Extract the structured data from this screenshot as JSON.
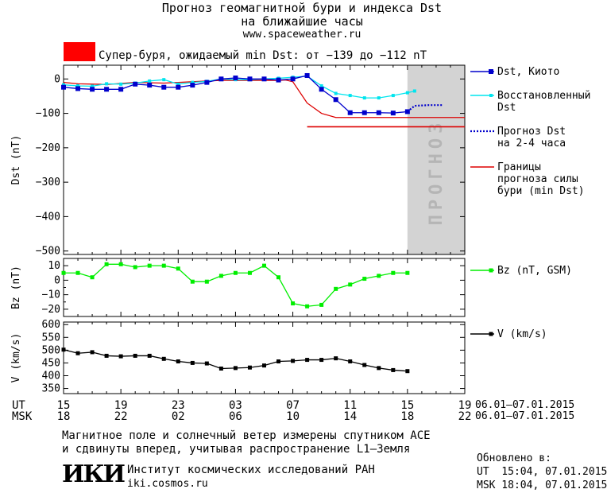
{
  "header": {
    "title_line1": "Прогноз геомагнитной бури и индекса Dst",
    "title_line2": "на ближайшие часы",
    "url": "www.spaceweather.ru",
    "alert_color": "#ff0000",
    "alert_text": "Супер-буря, ожидаемый min Dst: от −139 до −112 nT"
  },
  "forecast_label": "ПРОГНОЗ",
  "axes": {
    "ut_label": "UT",
    "msk_label": "MSK",
    "ut_ticks": [
      "15",
      "19",
      "23",
      "03",
      "07",
      "11",
      "15",
      "19"
    ],
    "msk_ticks": [
      "18",
      "22",
      "02",
      "06",
      "10",
      "14",
      "18",
      "22"
    ],
    "ut_range": "06.01–07.01.2015",
    "msk_range": "06.01–07.01.2015"
  },
  "footer": {
    "note_line1": "Магнитное поле и солнечный ветер измерены спутником ACE",
    "note_line2": "и сдвинуты вперед, учитывая распространение L1–Земля",
    "logo_text": "ИКИ",
    "institute": "Институт космических исследований РАН",
    "institute_url": "iki.cosmos.ru",
    "updated_label": "Обновлено в:",
    "updated_ut": "UT  15:04, 07.01.2015",
    "updated_msk": "MSK 18:04, 07.01.2015"
  },
  "colors": {
    "dst_kyoto": "#0000cc",
    "dst_restored": "#00e5ee",
    "dst_forecast": "#0000cc",
    "bounds": "#dd0000",
    "bz": "#00ee00",
    "v": "#000000",
    "forecast_band": "#d3d3d3"
  },
  "chart_data": [
    {
      "type": "line",
      "name": "dst",
      "xlabel": "",
      "ylabel": "Dst (nT)",
      "x_range": [
        15,
        43
      ],
      "ylim": [
        -510,
        40
      ],
      "y_ticks": [
        0,
        -100,
        -200,
        -300,
        -400,
        -500
      ],
      "forecast_band_x": [
        39,
        43
      ],
      "series": [
        {
          "name": "Dst, Киото",
          "x": [
            15,
            16,
            17,
            18,
            19,
            20,
            21,
            22,
            23,
            24,
            25,
            26,
            27,
            28,
            29,
            30,
            31,
            32,
            33,
            34,
            35,
            36,
            37,
            38,
            39
          ],
          "values": [
            -24,
            -28,
            -30,
            -30,
            -30,
            -15,
            -18,
            -24,
            -24,
            -18,
            -10,
            0,
            3,
            0,
            0,
            -3,
            0,
            10,
            -30,
            -60,
            -98,
            -98,
            -98,
            -99,
            -95
          ]
        },
        {
          "name": "Восстановленный Dst",
          "x": [
            15,
            16,
            17,
            18,
            19,
            20,
            21,
            22,
            23,
            24,
            25,
            26,
            27,
            28,
            29,
            30,
            31,
            32,
            33,
            34,
            35,
            36,
            37,
            38,
            39,
            39.5
          ],
          "values": [
            -17,
            -20,
            -21,
            -14,
            -15,
            -12,
            -6,
            -2,
            -15,
            -10,
            -7,
            0,
            -2,
            -2,
            0,
            2,
            5,
            8,
            -20,
            -42,
            -48,
            -55,
            -55,
            -48,
            -40,
            -35
          ]
        },
        {
          "name": "Прогноз Dst на 2-4 часа",
          "x": [
            39,
            39.5,
            40.5,
            41.5
          ],
          "values": [
            -95,
            -78,
            -76,
            -76
          ]
        },
        {
          "name": "Границы прогноза силы бури (min Dst)",
          "x": [
            15,
            16,
            18,
            20,
            22,
            24,
            26,
            28,
            30,
            30.5,
            31,
            32,
            33,
            34,
            35,
            36,
            43
          ],
          "values": [
            -10,
            -14,
            -16,
            -10,
            -12,
            -8,
            -4,
            -4,
            -4,
            -3,
            -8,
            -70,
            -100,
            -112,
            -112,
            -112,
            -112
          ]
        },
        {
          "name": "bound_lower",
          "x": [
            32,
            43
          ],
          "values": [
            -139,
            -139
          ]
        }
      ]
    },
    {
      "type": "line",
      "name": "bz",
      "xlabel": "",
      "ylabel": "Bz (nT)",
      "x_range": [
        15,
        43
      ],
      "ylim": [
        -25,
        15
      ],
      "y_ticks": [
        10,
        0,
        -10,
        -20
      ],
      "series": [
        {
          "name": "Bz (nT, GSM)",
          "x": [
            15,
            16,
            17,
            18,
            19,
            20,
            21,
            22,
            23,
            24,
            25,
            26,
            27,
            28,
            29,
            30,
            31,
            32,
            33,
            34,
            35,
            36,
            37,
            38,
            39
          ],
          "values": [
            5,
            5,
            2,
            11,
            11,
            9,
            10,
            10,
            8,
            -1,
            -1,
            3,
            5,
            5,
            10,
            2,
            -16,
            -18,
            -17,
            -6,
            -3,
            1,
            3,
            5,
            5
          ]
        }
      ]
    },
    {
      "type": "line",
      "name": "v",
      "xlabel": "",
      "ylabel": "V (km/s)",
      "x_range": [
        15,
        43
      ],
      "ylim": [
        330,
        610
      ],
      "y_ticks": [
        600,
        550,
        500,
        450,
        400,
        350
      ],
      "series": [
        {
          "name": "V (km/s)",
          "x": [
            15,
            16,
            17,
            18,
            19,
            20,
            21,
            22,
            23,
            24,
            25,
            26,
            27,
            28,
            29,
            30,
            31,
            32,
            33,
            34,
            35,
            36,
            37,
            38,
            39
          ],
          "values": [
            502,
            488,
            492,
            478,
            476,
            478,
            478,
            466,
            456,
            450,
            448,
            428,
            430,
            432,
            440,
            456,
            458,
            462,
            462,
            468,
            456,
            442,
            430,
            422,
            418
          ]
        }
      ]
    }
  ]
}
